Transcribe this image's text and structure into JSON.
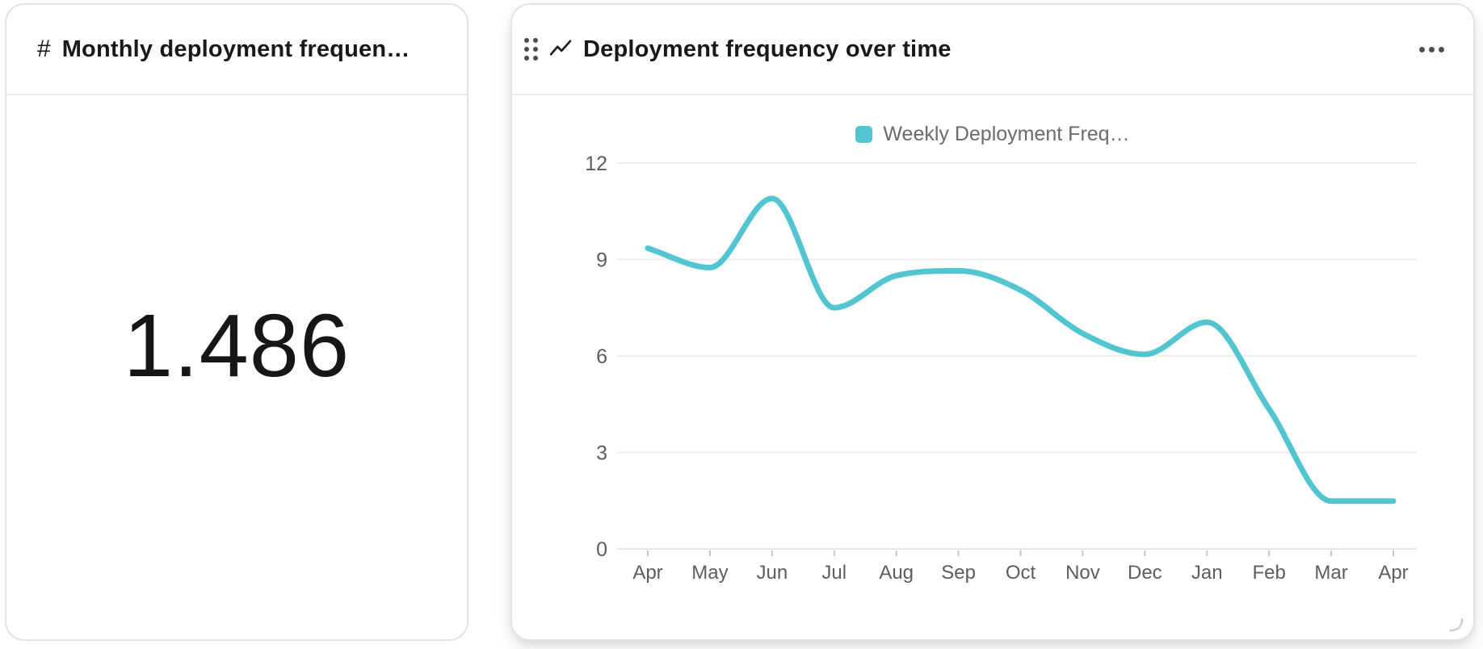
{
  "left_card": {
    "icon_glyph": "#",
    "title": "Monthly deployment frequen…",
    "value": "1.486"
  },
  "right_card": {
    "title": "Deployment frequency over time",
    "accent_color": "#53c5d1"
  },
  "chart_data": {
    "type": "line",
    "title": "Deployment frequency over time",
    "legend_position": "top",
    "x": [
      "Apr",
      "May",
      "Jun",
      "Jul",
      "Aug",
      "Sep",
      "Oct",
      "Nov",
      "Dec",
      "Jan",
      "Feb",
      "Mar",
      "Apr"
    ],
    "series": [
      {
        "name": "Weekly Deployment Freq…",
        "color": "#53c5d1",
        "values": [
          9.35,
          8.75,
          10.9,
          7.5,
          8.5,
          8.65,
          8.05,
          6.7,
          6.05,
          7.05,
          4.35,
          1.486,
          1.486
        ]
      }
    ],
    "ylim": [
      0,
      12
    ],
    "yticks": [
      0,
      3,
      6,
      9,
      12
    ],
    "grid": true,
    "smooth": "monotone",
    "axis_text_color": "#5d5d5d",
    "grid_color": "#ededed"
  }
}
